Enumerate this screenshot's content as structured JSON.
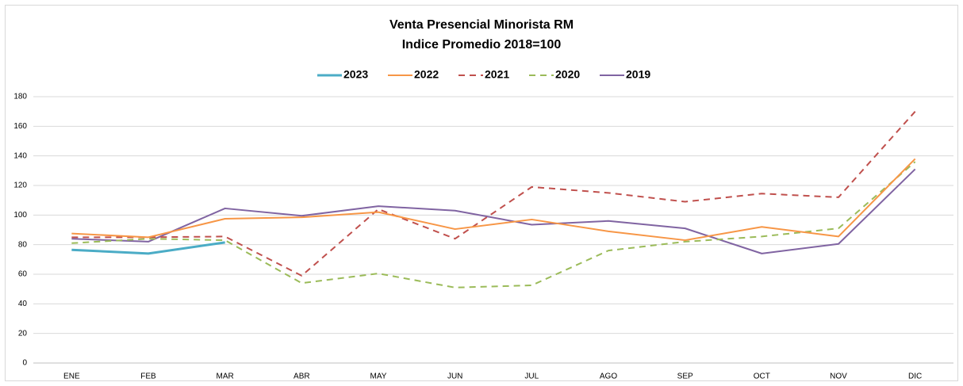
{
  "chart_data": {
    "type": "line",
    "title": "Venta Presencial Minorista RM",
    "subtitle": "Indice Promedio 2018=100",
    "categories": [
      "ENE",
      "FEB",
      "MAR",
      "ABR",
      "MAY",
      "JUN",
      "JUL",
      "AGO",
      "SEP",
      "OCT",
      "NOV",
      "DIC"
    ],
    "series": [
      {
        "name": "2023",
        "color": "#4bacc6",
        "line_style": "solid",
        "values": [
          76.5,
          74,
          81.5,
          null,
          null,
          null,
          null,
          null,
          null,
          null,
          null,
          null
        ]
      },
      {
        "name": "2022",
        "color": "#f79646",
        "line_style": "solid",
        "values": [
          87.5,
          85,
          97.5,
          98.5,
          102,
          90.5,
          97,
          89,
          83,
          92,
          85.5,
          138
        ]
      },
      {
        "name": "2021",
        "color": "#c0504d",
        "line_style": "dashed",
        "values": [
          85,
          85,
          85.5,
          59,
          104,
          84,
          119,
          115,
          109,
          114.5,
          112,
          170
        ]
      },
      {
        "name": "2020",
        "color": "#9bbb59",
        "line_style": "dashed",
        "values": [
          81,
          84,
          83,
          54,
          60.5,
          51,
          52.5,
          76,
          82,
          85.5,
          91,
          136
        ]
      },
      {
        "name": "2019",
        "color": "#8064a2",
        "line_style": "solid",
        "values": [
          84,
          82,
          104.5,
          99.5,
          106,
          103,
          93.5,
          96,
          91,
          74,
          80.5,
          131
        ]
      }
    ],
    "ylim": [
      0,
      180
    ],
    "yticks": [
      0,
      20,
      40,
      60,
      80,
      100,
      120,
      140,
      160,
      180
    ],
    "grid": true,
    "legend": "top"
  }
}
